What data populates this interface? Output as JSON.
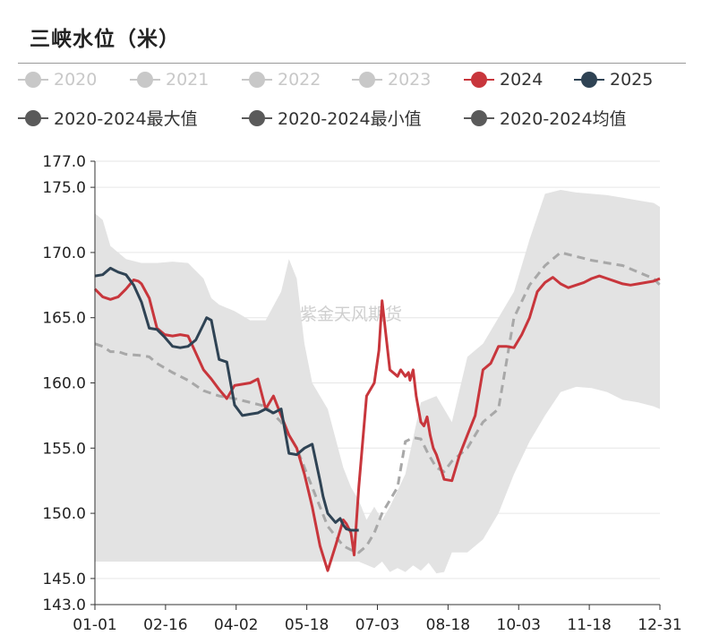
{
  "page": {
    "title": "三峡水位（米）",
    "watermark": "紫金天风期货"
  },
  "legend": [
    {
      "label": "2020",
      "color": "#c8c8c8",
      "active": false
    },
    {
      "label": "2021",
      "color": "#c8c8c8",
      "active": false
    },
    {
      "label": "2022",
      "color": "#c8c8c8",
      "active": false
    },
    {
      "label": "2023",
      "color": "#c8c8c8",
      "active": false
    },
    {
      "label": "2024",
      "color": "#c8363c",
      "active": true
    },
    {
      "label": "2025",
      "color": "#2f4354",
      "active": true
    },
    {
      "label": "2020-2024最大值",
      "color": "#5a5a5a",
      "active": true
    },
    {
      "label": "2020-2024最小值",
      "color": "#5a5a5a",
      "active": true
    },
    {
      "label": "2020-2024均值",
      "color": "#5a5a5a",
      "active": true
    }
  ],
  "chart_data": {
    "type": "line",
    "title": "三峡水位（米）",
    "xlabel": "",
    "ylabel": "",
    "x_ticks": [
      "01-01",
      "02-16",
      "04-02",
      "05-18",
      "07-03",
      "08-18",
      "10-03",
      "11-18",
      "12-31"
    ],
    "y_ticks": [
      143.0,
      145.0,
      150.0,
      155.0,
      160.0,
      165.0,
      170.0,
      175.0,
      177.0
    ],
    "ylim": [
      143,
      177
    ],
    "xlim": [
      0,
      364
    ],
    "grid": true,
    "legend_position": "top",
    "colors": {
      "2024": "#c8363c",
      "2025": "#2f4354",
      "range": "#e3e3e3",
      "mean": "#a8a8a8"
    },
    "series": [
      {
        "name": "2020-2024最大值",
        "style": "band-upper",
        "x": [
          0,
          5,
          10,
          20,
          30,
          40,
          50,
          60,
          70,
          75,
          80,
          90,
          100,
          110,
          120,
          125,
          130,
          135,
          140,
          150,
          160,
          165,
          170,
          175,
          180,
          185,
          190,
          200,
          210,
          220,
          230,
          240,
          250,
          260,
          270,
          280,
          290,
          300,
          310,
          320,
          330,
          340,
          350,
          360,
          364
        ],
        "y": [
          173,
          172.5,
          170.5,
          169.5,
          169.2,
          169.2,
          169.3,
          169.2,
          168,
          166.5,
          166,
          165.5,
          164.8,
          164.8,
          167,
          169.5,
          168,
          163,
          160,
          158,
          153.5,
          152,
          151,
          149.5,
          150.5,
          149.5,
          150.5,
          153,
          158.5,
          159,
          157,
          162,
          163,
          165,
          167,
          171,
          174.5,
          174.8,
          174.6,
          174.5,
          174.4,
          174.2,
          174,
          173.8,
          173.5
        ]
      },
      {
        "name": "2020-2024最小值",
        "style": "band-lower",
        "x": [
          0,
          20,
          40,
          60,
          80,
          100,
          120,
          140,
          160,
          170,
          180,
          185,
          190,
          195,
          200,
          205,
          210,
          215,
          220,
          225,
          230,
          240,
          250,
          260,
          270,
          280,
          290,
          300,
          310,
          320,
          330,
          340,
          350,
          360,
          364
        ],
        "y": [
          146.3,
          146.3,
          146.3,
          146.3,
          146.3,
          146.3,
          146.3,
          146.3,
          146.3,
          146.3,
          145.8,
          146.3,
          145.5,
          145.8,
          145.5,
          146,
          145.6,
          146.2,
          145.4,
          145.5,
          147,
          147,
          148,
          150,
          153,
          155.5,
          157.5,
          159.3,
          159.7,
          159.6,
          159.3,
          158.7,
          158.5,
          158.2,
          158
        ]
      },
      {
        "name": "2020-2024均值",
        "style": "dashed",
        "x": [
          0,
          5,
          10,
          15,
          20,
          30,
          35,
          40,
          50,
          60,
          70,
          80,
          90,
          100,
          110,
          120,
          130,
          140,
          150,
          160,
          165,
          170,
          175,
          180,
          185,
          190,
          195,
          200,
          205,
          210,
          215,
          220,
          225,
          230,
          235,
          240,
          245,
          250,
          255,
          260,
          270,
          280,
          290,
          300,
          310,
          320,
          330,
          340,
          350,
          360,
          364
        ],
        "y": [
          163,
          162.8,
          162.4,
          162.4,
          162.2,
          162.1,
          162,
          161.5,
          160.8,
          160.2,
          159.4,
          159,
          158.8,
          158.5,
          158.2,
          157,
          155,
          152,
          149,
          147.5,
          147.2,
          147,
          147.5,
          148.5,
          150,
          151,
          152,
          155.5,
          155.8,
          155.7,
          154.5,
          153.5,
          153.2,
          154,
          154.5,
          155,
          156,
          157,
          157.5,
          158,
          165,
          167.5,
          169,
          170,
          169.7,
          169.4,
          169.2,
          169,
          168.5,
          168,
          167.5
        ]
      },
      {
        "name": "2024",
        "style": "solid",
        "x": [
          0,
          5,
          10,
          15,
          20,
          25,
          28,
          30,
          35,
          40,
          45,
          50,
          55,
          60,
          70,
          75,
          80,
          85,
          90,
          100,
          105,
          110,
          115,
          120,
          125,
          130,
          135,
          140,
          145,
          150,
          155,
          160,
          162,
          165,
          167,
          170,
          175,
          180,
          183,
          185,
          190,
          195,
          197,
          200,
          202,
          203,
          205,
          207,
          210,
          212,
          214,
          216,
          218,
          220,
          222,
          225,
          230,
          235,
          240,
          245,
          250,
          255,
          260,
          265,
          270,
          275,
          280,
          285,
          290,
          295,
          300,
          305,
          310,
          315,
          320,
          325,
          330,
          335,
          340,
          345,
          350,
          355,
          360,
          364
        ],
        "y": [
          167.2,
          166.6,
          166.4,
          166.6,
          167.2,
          167.9,
          167.8,
          167.6,
          166.5,
          164.2,
          163.7,
          163.6,
          163.7,
          163.6,
          161,
          160.3,
          159.5,
          158.8,
          159.8,
          160,
          160.3,
          158,
          159,
          157.5,
          156,
          155,
          153,
          150.5,
          147.5,
          145.6,
          147.5,
          149.5,
          149.2,
          148.5,
          146.8,
          152,
          159,
          160,
          162.5,
          166.3,
          161,
          160.5,
          161,
          160.5,
          160.8,
          160.2,
          161,
          159,
          157,
          156.7,
          157.4,
          156,
          155,
          154.5,
          153.8,
          152.6,
          152.5,
          154.5,
          156,
          157.5,
          161,
          161.5,
          162.8,
          162.8,
          162.7,
          163.7,
          165,
          167,
          167.7,
          168.1,
          167.6,
          167.3,
          167.5,
          167.7,
          168,
          168.2,
          168,
          167.8,
          167.6,
          167.5,
          167.6,
          167.7,
          167.8,
          168
        ]
      },
      {
        "name": "2025",
        "style": "solid",
        "x": [
          0,
          5,
          10,
          15,
          20,
          25,
          30,
          35,
          40,
          45,
          50,
          55,
          60,
          65,
          70,
          72,
          75,
          78,
          80,
          85,
          90,
          95,
          100,
          105,
          110,
          115,
          120,
          125,
          130,
          135,
          140,
          145,
          147,
          150,
          155,
          158,
          160,
          162,
          165,
          168,
          170
        ],
        "y": [
          168.2,
          168.3,
          168.8,
          168.5,
          168.3,
          167.5,
          166.2,
          164.2,
          164.1,
          163.5,
          162.8,
          162.7,
          162.8,
          163.3,
          164.5,
          165,
          164.8,
          163,
          161.8,
          161.6,
          158.3,
          157.5,
          157.6,
          157.7,
          158,
          157.7,
          158,
          154.6,
          154.5,
          155,
          155.3,
          152.5,
          151.3,
          150,
          149.3,
          149.6,
          149.1,
          148.8,
          148.7,
          148.7,
          148.7
        ]
      }
    ]
  }
}
